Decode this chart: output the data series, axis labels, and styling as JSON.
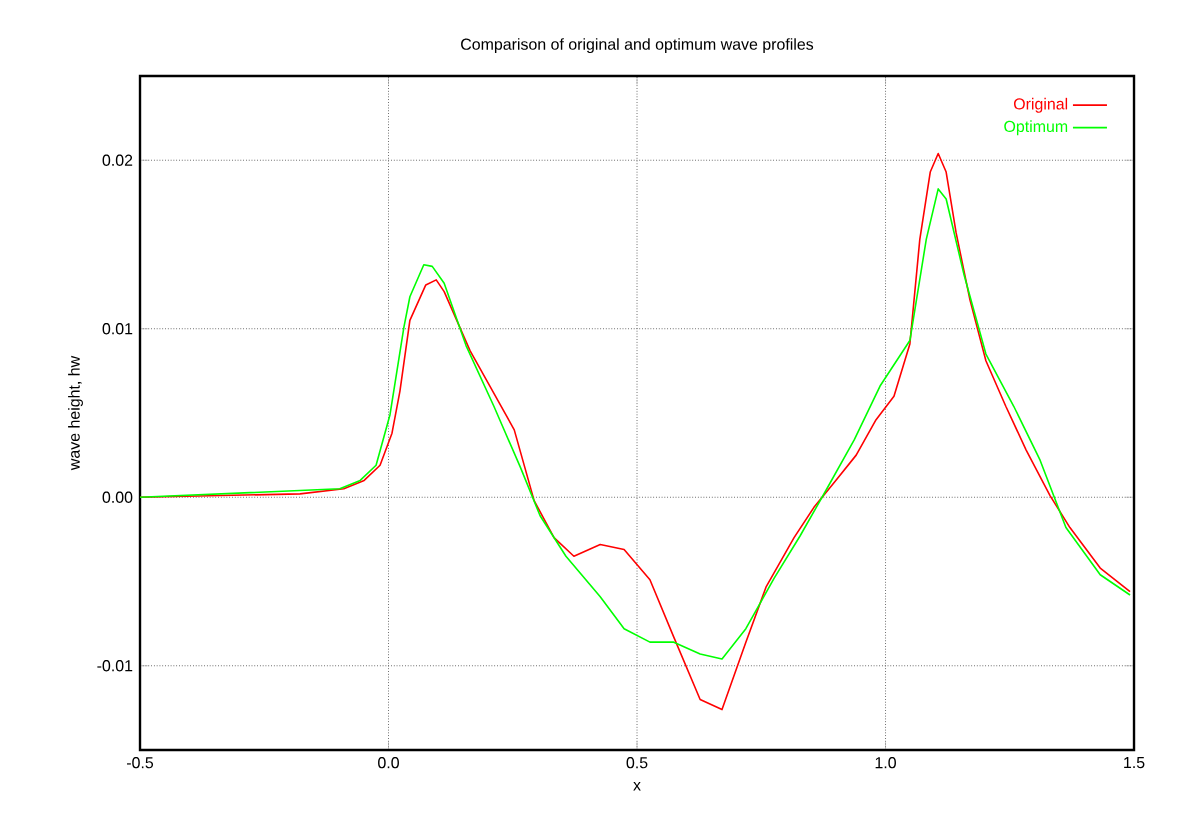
{
  "chart_data": {
    "type": "line",
    "title": "Comparison of original and optimum wave profiles",
    "xlabel": "x",
    "ylabel": "wave height, hw",
    "xlim": [
      -0.5,
      1.5
    ],
    "xticks": [
      -0.5,
      {
        "value": 0,
        "label": "0.0"
      },
      0.5,
      {
        "value": 1,
        "label": "1.0"
      },
      1.5
    ],
    "ylim": [
      -0.015,
      0.025
    ],
    "yticks": [
      -0.01,
      {
        "value": 0,
        "label": "0.00"
      },
      0.01,
      0.02
    ],
    "grid": true,
    "legend": "top right",
    "line_style": "solid",
    "marker": "none",
    "series": [
      {
        "name": "Original",
        "color": "#ff0000",
        "x": [
          -0.5,
          -0.178,
          -0.09,
          -0.049,
          -0.017,
          0.007,
          0.023,
          0.043,
          0.075,
          0.096,
          0.112,
          0.164,
          0.253,
          0.293,
          0.333,
          0.373,
          0.426,
          0.474,
          0.526,
          0.574,
          0.627,
          0.671,
          0.719,
          0.76,
          0.816,
          0.856,
          0.9,
          0.941,
          0.981,
          1.017,
          1.049,
          1.069,
          1.09,
          1.106,
          1.122,
          1.142,
          1.17,
          1.202,
          1.242,
          1.283,
          1.331,
          1.371,
          1.432,
          1.492
        ],
        "values": [
          0,
          0.0002,
          0.0005,
          0.001,
          0.0019,
          0.0038,
          0.0063,
          0.0105,
          0.0126,
          0.0129,
          0.0122,
          0.0087,
          0.004,
          -0.0002,
          -0.0024,
          -0.0035,
          -0.0028,
          -0.0031,
          -0.0049,
          -0.0083,
          -0.012,
          -0.0126,
          -0.0086,
          -0.0053,
          -0.0024,
          -0.0006,
          0.001,
          0.0025,
          0.0046,
          0.006,
          0.0091,
          0.0153,
          0.0193,
          0.0204,
          0.0193,
          0.0157,
          0.0117,
          0.0081,
          0.0054,
          0.0028,
          0.0001,
          -0.0018,
          -0.0042,
          -0.0056
        ]
      },
      {
        "name": "Optimum",
        "color": "#00ff00",
        "x": [
          -0.5,
          -0.098,
          -0.057,
          -0.025,
          0.003,
          0.031,
          0.043,
          0.071,
          0.088,
          0.112,
          0.156,
          0.212,
          0.265,
          0.305,
          0.357,
          0.426,
          0.474,
          0.526,
          0.574,
          0.627,
          0.671,
          0.719,
          0.776,
          0.828,
          0.88,
          0.937,
          0.989,
          1.049,
          1.082,
          1.106,
          1.122,
          1.158,
          1.202,
          1.258,
          1.311,
          1.363,
          1.432,
          1.492
        ],
        "values": [
          0,
          0.0005,
          0.001,
          0.0019,
          0.0049,
          0.0101,
          0.0119,
          0.0138,
          0.0137,
          0.0127,
          0.009,
          0.0054,
          0.0018,
          -0.0011,
          -0.0035,
          -0.0059,
          -0.0078,
          -0.0086,
          -0.0086,
          -0.0093,
          -0.0096,
          -0.0078,
          -0.0048,
          -0.0023,
          0.0004,
          0.0034,
          0.0066,
          0.0093,
          0.0153,
          0.0183,
          0.0177,
          0.0132,
          0.0085,
          0.0054,
          0.0022,
          -0.0018,
          -0.0046,
          -0.0058
        ]
      }
    ]
  }
}
